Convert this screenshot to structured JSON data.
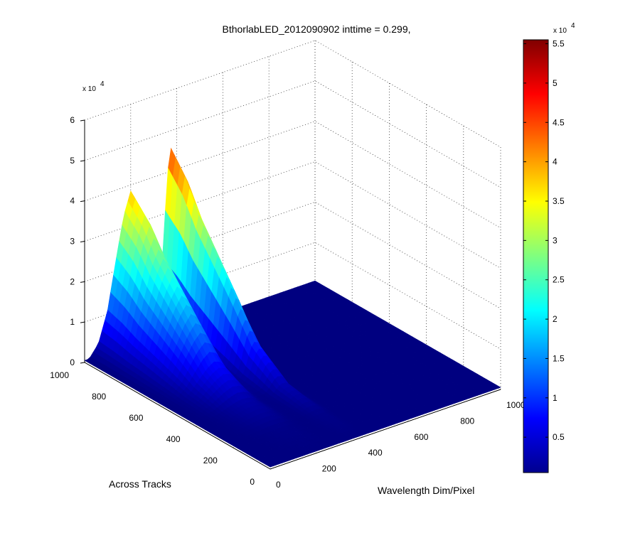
{
  "chart_data": {
    "type": "surface",
    "title": "BthorlabLED_2012090902 inttime = 0.299,",
    "xlabel": "Wavelength Dim/Pixel",
    "ylabel": "Across Tracks",
    "zlabel": "",
    "x_ticks": [
      "0",
      "200",
      "400",
      "600",
      "800",
      "1000"
    ],
    "y_ticks": [
      "0",
      "200",
      "400",
      "600",
      "800",
      "1000"
    ],
    "z_ticks": [
      "0",
      "1",
      "2",
      "3",
      "4",
      "5",
      "6"
    ],
    "z_multiplier_base": "x 10",
    "z_multiplier_exp": "4",
    "xlim": [
      0,
      1000
    ],
    "ylim": [
      0,
      1000
    ],
    "zlim": [
      0,
      60000
    ],
    "grid": "dotted",
    "colormap": "jet",
    "colorbar": {
      "ticks": [
        "0.5",
        "1",
        "1.5",
        "2",
        "2.5",
        "3",
        "3.5",
        "4",
        "4.5",
        "5",
        "5.5"
      ],
      "tick_values": [
        5000,
        10000,
        15000,
        20000,
        25000,
        30000,
        35000,
        40000,
        45000,
        50000,
        55000
      ],
      "range": [
        500,
        55500
      ],
      "multiplier_base": "x 10",
      "multiplier_exp": "4"
    },
    "surface_profile": {
      "description_axis": "value along wavelength pixel at the far across-track edge (y = 1000)",
      "wavelength": [
        0,
        20,
        60,
        100,
        140,
        170,
        200,
        230,
        255,
        270,
        290,
        310,
        330,
        345,
        360,
        380,
        400,
        410,
        420,
        430,
        445,
        460,
        480,
        520,
        600,
        1000
      ],
      "value": [
        0,
        500,
        3500,
        11000,
        24000,
        33000,
        38500,
        35000,
        24000,
        12000,
        6500,
        6000,
        12000,
        26000,
        40000,
        47500,
        38000,
        24000,
        9000,
        3500,
        1500,
        800,
        500,
        500,
        500,
        500
      ]
    },
    "across_track_scale": {
      "across_track": [
        0,
        200,
        400,
        550,
        650,
        750,
        850,
        920,
        1000
      ],
      "factor": [
        0,
        0.01,
        0.06,
        0.2,
        0.38,
        0.55,
        0.72,
        0.88,
        1.0
      ]
    }
  }
}
